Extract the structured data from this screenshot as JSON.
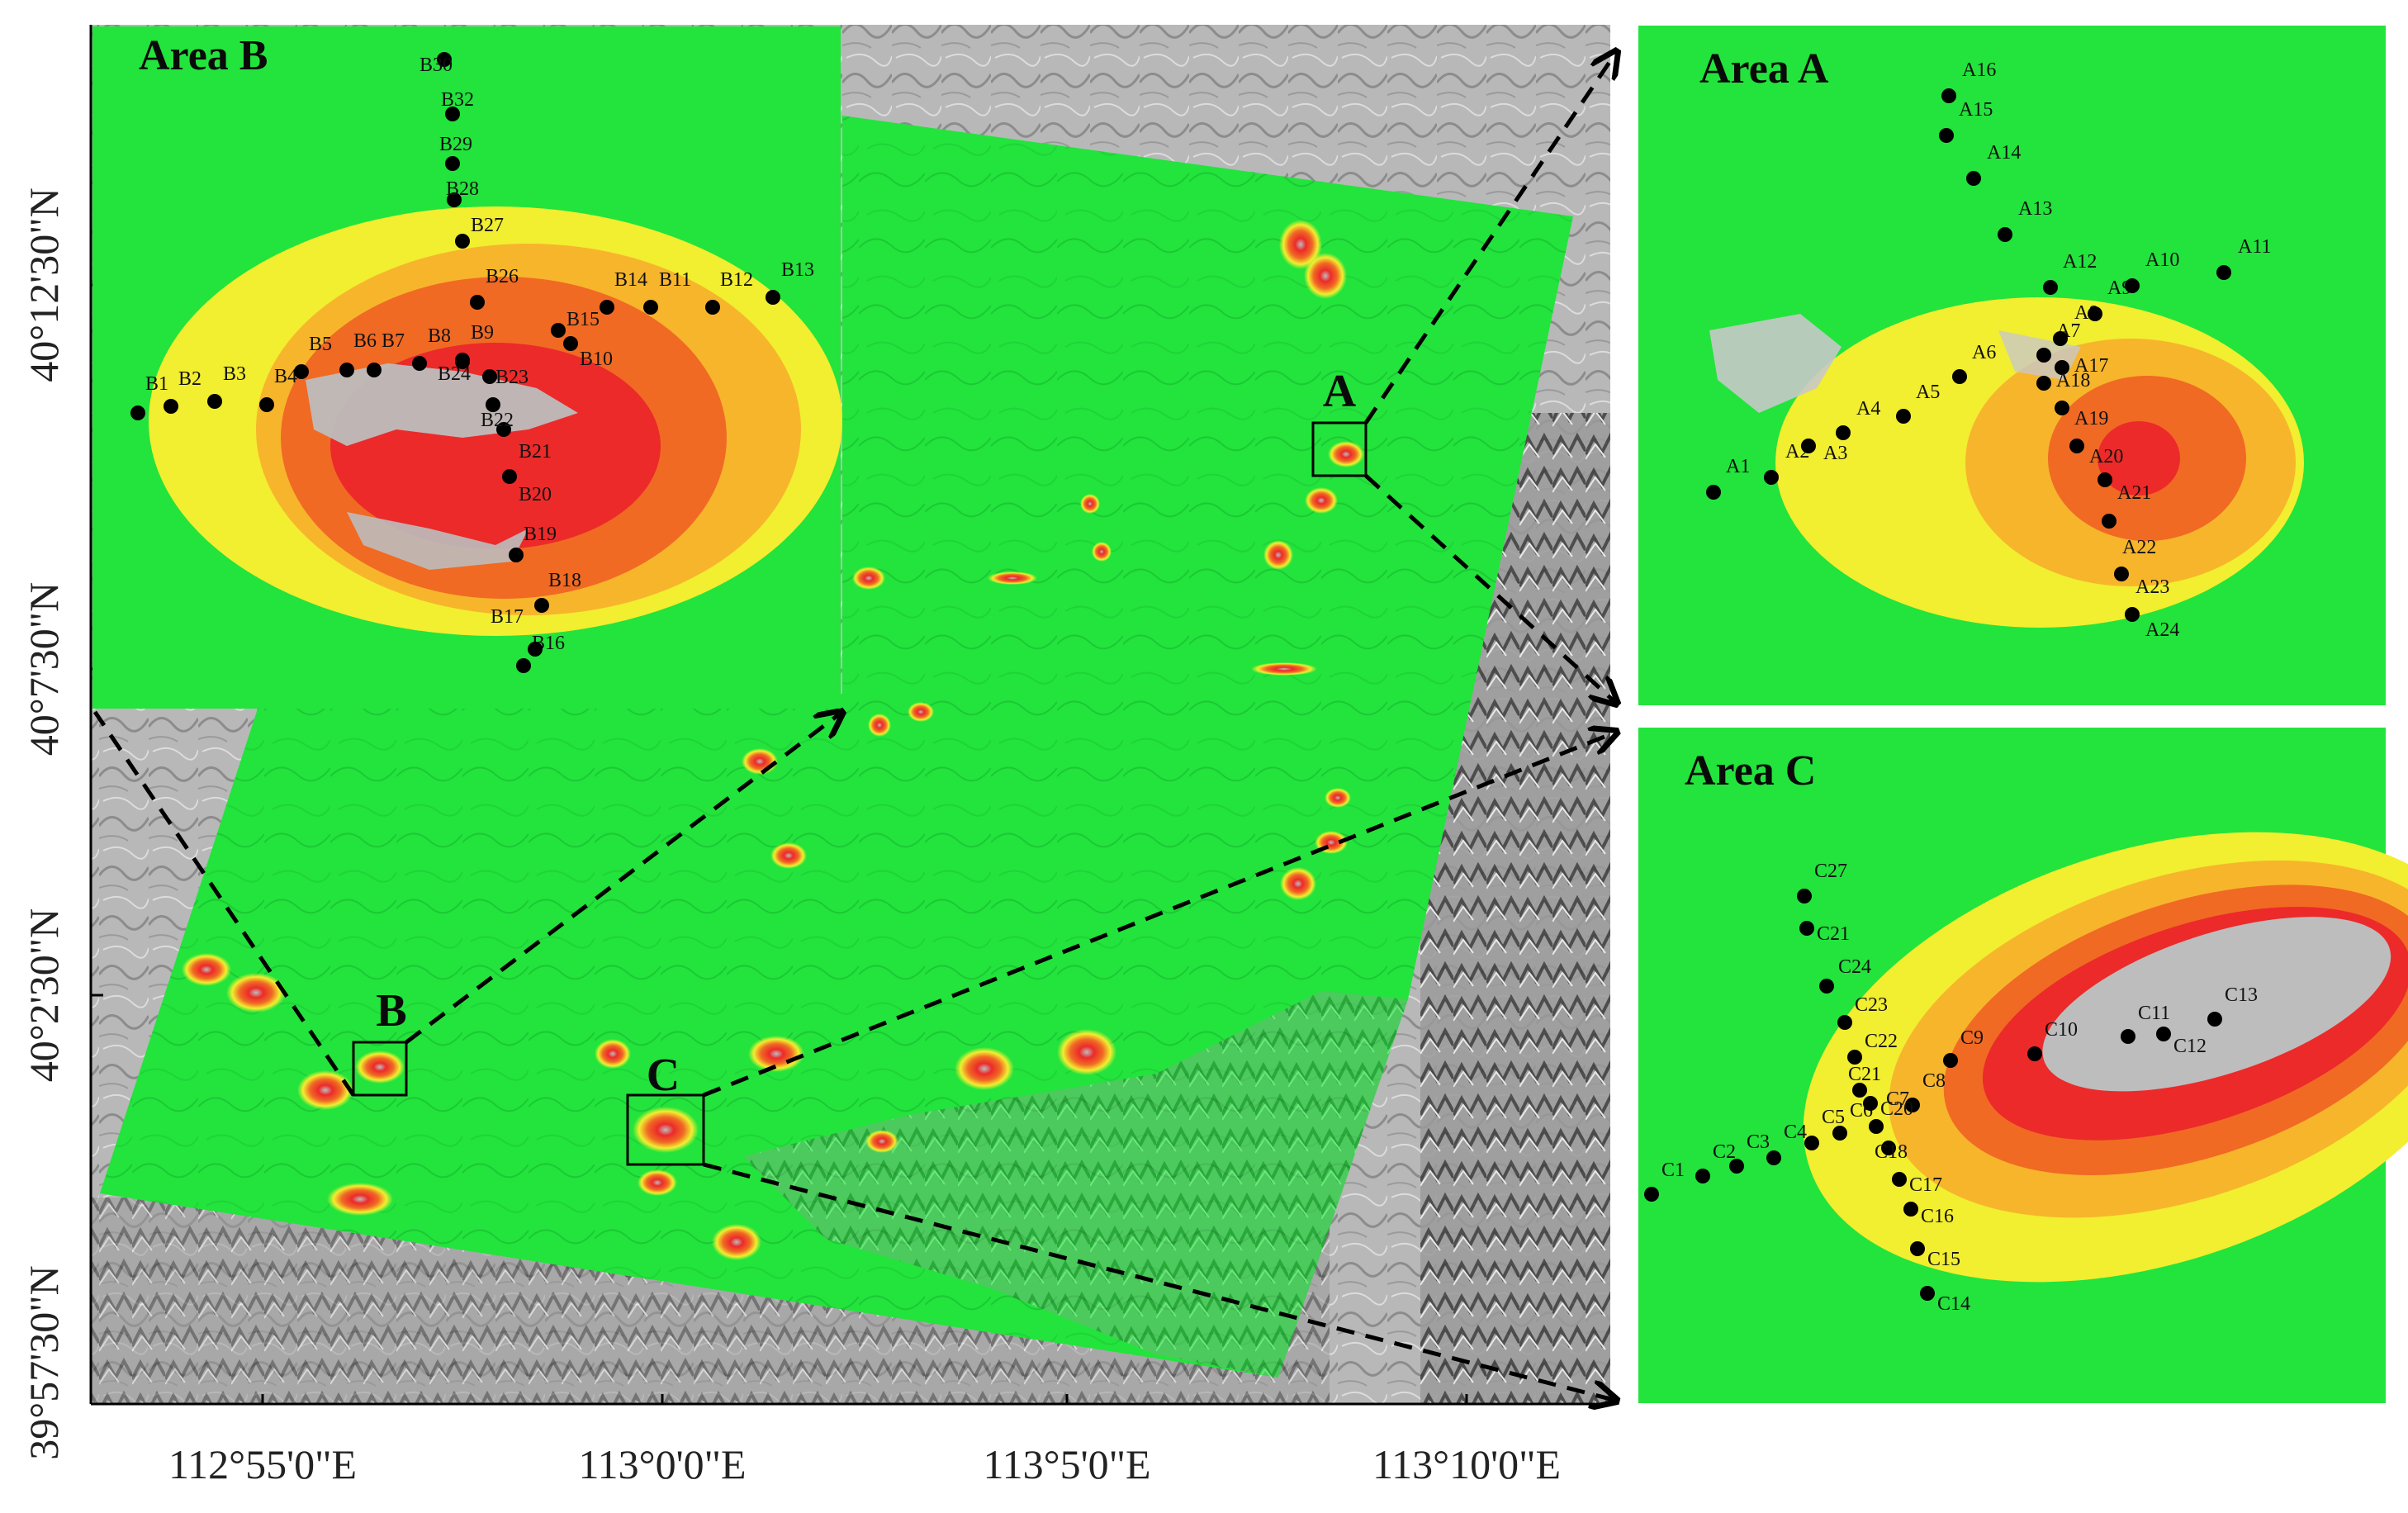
{
  "colors": {
    "stable": "#1fe63a",
    "low": "#f2ee30",
    "mid": "#f7b52c",
    "high": "#f06a24",
    "max": "#ec2a2a",
    "hillshade": "#b4b4b4",
    "decorrelated": "#c8c8c8"
  },
  "overview": {
    "box_labels": {
      "a": "A",
      "b": "B",
      "c": "C"
    }
  },
  "axes": {
    "lon_ticks": [
      "112°55'0\"E",
      "113°0'0\"E",
      "113°5'0\"E",
      "113°10'0\"E"
    ],
    "lat_ticks": [
      "40°12'30\"N",
      "40°7'30\"N",
      "40°2'30\"N",
      "39°57'30\"N"
    ]
  },
  "insets": {
    "area_a": {
      "title": "Area A",
      "points": [
        "A1",
        "A2",
        "A3",
        "A4",
        "A5",
        "A6",
        "A7",
        "A8",
        "A9",
        "A10",
        "A11",
        "A12",
        "A13",
        "A14",
        "A15",
        "A16",
        "A17",
        "A18",
        "A19",
        "A20",
        "A21",
        "A22",
        "A23",
        "A24"
      ]
    },
    "area_b": {
      "title": "Area B",
      "points": [
        "B1",
        "B2",
        "B3",
        "B4",
        "B5",
        "B6",
        "B7",
        "B8",
        "B9",
        "B10",
        "B11",
        "B12",
        "B13",
        "B14",
        "B15",
        "B16",
        "B17",
        "B18",
        "B19",
        "B20",
        "B21",
        "B22",
        "B23",
        "B24",
        "B26",
        "B27",
        "B28",
        "B29",
        "B32",
        "B30"
      ]
    },
    "area_c": {
      "title": "Area  C",
      "points": [
        "C1",
        "C2",
        "C3",
        "C4",
        "C5",
        "C6",
        "C7",
        "C8",
        "C9",
        "C10",
        "C11",
        "C12",
        "C13",
        "C14",
        "C15",
        "C16",
        "C17",
        "C18",
        "C20",
        "C21",
        "C22",
        "C23",
        "C24",
        "C21",
        "C27"
      ]
    }
  }
}
